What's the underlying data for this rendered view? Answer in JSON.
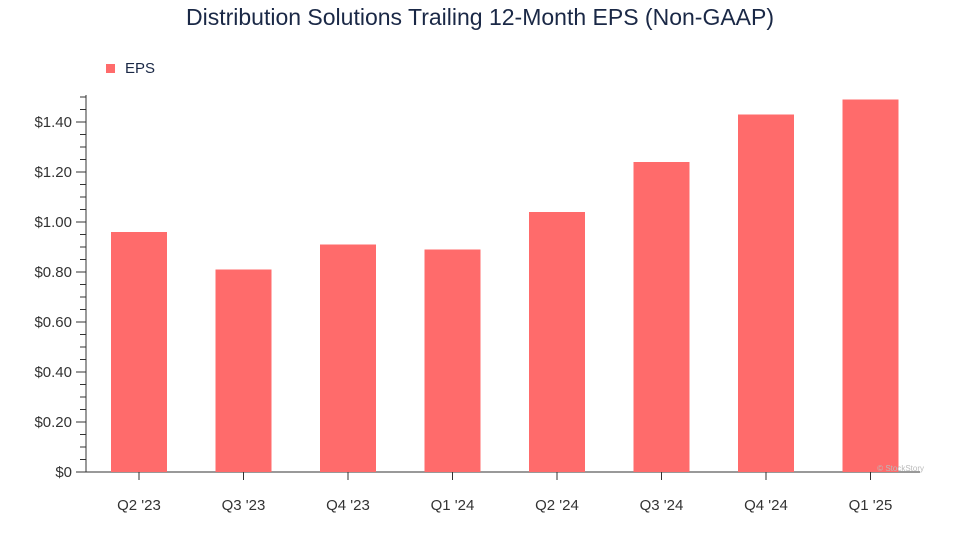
{
  "chart_data": {
    "type": "bar",
    "title": "Distribution Solutions Trailing 12-Month EPS (Non-GAAP)",
    "categories": [
      "Q2 '23",
      "Q3 '23",
      "Q4 '23",
      "Q1 '24",
      "Q2 '24",
      "Q3 '24",
      "Q4 '24",
      "Q1 '25"
    ],
    "series": [
      {
        "name": "EPS",
        "values": [
          0.96,
          0.81,
          0.91,
          0.89,
          1.04,
          1.24,
          1.43,
          1.49
        ],
        "color": "#ff6b6b"
      }
    ],
    "yticks": [
      "$0",
      "$0.20",
      "$0.40",
      "$0.60",
      "$0.80",
      "$1.00",
      "$1.20",
      "$1.40"
    ],
    "ytick_values": [
      0,
      0.2,
      0.4,
      0.6,
      0.8,
      1.0,
      1.2,
      1.4
    ],
    "ylim": [
      0,
      1.5
    ],
    "xlabel": "",
    "ylabel": "",
    "legend_position": "top-left",
    "grid": false,
    "watermark": "© StockStory"
  }
}
